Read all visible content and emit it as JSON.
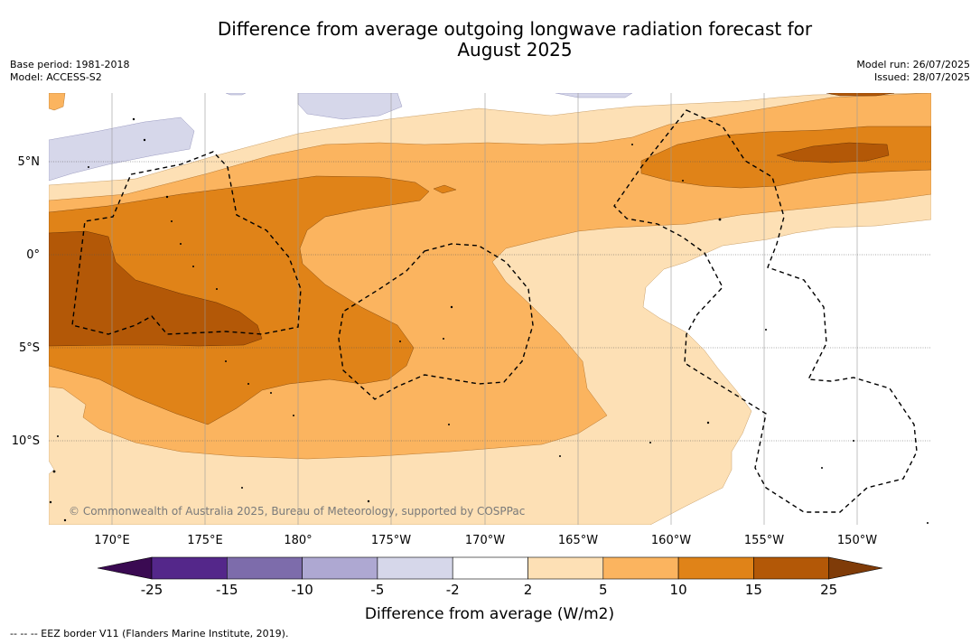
{
  "title_line1": "Difference from average outgoing longwave radiation forecast for",
  "title_line2": "August 2025",
  "meta": {
    "base_period": "Base period: 1981-2018",
    "model": "Model: ACCESS-S2",
    "model_run": "Model run: 26/07/2025",
    "issued": "Issued: 28/07/2025"
  },
  "map": {
    "lat_labels": [
      "5°N",
      "0°",
      "5°S",
      "10°S"
    ],
    "lon_labels": [
      "170°E",
      "175°E",
      "180°",
      "175°W",
      "170°W",
      "165°W",
      "160°W",
      "155°W",
      "150°W"
    ],
    "copyright": "© Commonwealth of Australia 2025, Bureau of Meteorology, supported by COSPPac"
  },
  "colorbar": {
    "ticks": [
      "-25",
      "-15",
      "-10",
      "-5",
      "-2",
      "2",
      "5",
      "10",
      "15",
      "25"
    ],
    "colors": [
      "#3a0a52",
      "#54278a",
      "#7d6cab",
      "#aea8d2",
      "#d6d7ea",
      "#ffffff",
      "#fde0b5",
      "#fbb45f",
      "#e08318",
      "#b35807",
      "#7f3b08"
    ],
    "label": "Difference from average (W/m2)"
  },
  "footer_note": "-- -- -- EEZ border V11 (Flanders Marine Institute, 2019)."
}
